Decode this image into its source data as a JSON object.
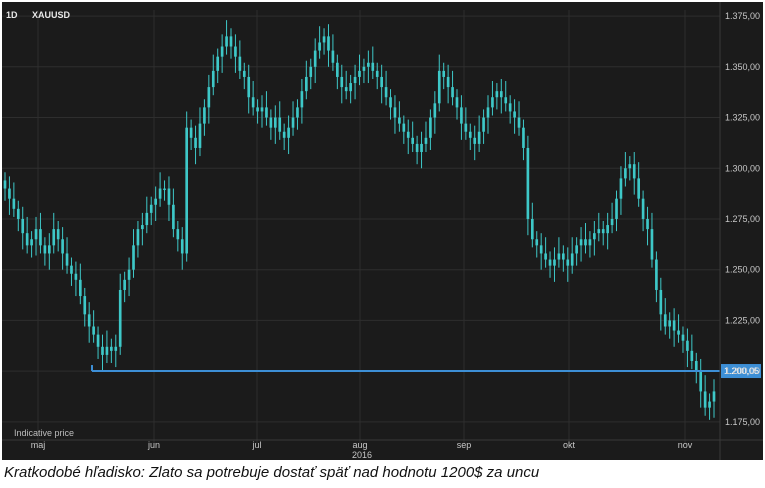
{
  "chart_data": {
    "type": "candlestick",
    "symbol": "XAUUSD",
    "interval": "1D",
    "footnote": "Indicative price",
    "year_label": "2016",
    "months": [
      "maj",
      "jun",
      "jul",
      "aug",
      "sep",
      "okt",
      "nov"
    ],
    "y_ticks": [
      "1.375,00",
      "1.350,00",
      "1.325,00",
      "1.300,00",
      "1.275,00",
      "1.250,00",
      "1.225,00",
      "1.200,00",
      "1.175,00"
    ],
    "ylim": [
      1170,
      1378
    ],
    "level": {
      "value": 1200.05,
      "label": "1.200,05",
      "color": "#3d8fd6"
    },
    "candle_color": "#3ec8c8",
    "background": "#1b1b1b",
    "closes": [
      1290,
      1285,
      1280,
      1275,
      1268,
      1262,
      1265,
      1270,
      1262,
      1258,
      1262,
      1270,
      1265,
      1258,
      1252,
      1248,
      1245,
      1237,
      1228,
      1222,
      1218,
      1212,
      1208,
      1212,
      1210,
      1212,
      1240,
      1245,
      1250,
      1262,
      1270,
      1272,
      1278,
      1282,
      1285,
      1290,
      1290,
      1282,
      1270,
      1265,
      1258,
      1320,
      1315,
      1310,
      1322,
      1330,
      1340,
      1348,
      1355,
      1360,
      1365,
      1360,
      1355,
      1348,
      1345,
      1335,
      1330,
      1328,
      1330,
      1325,
      1320,
      1325,
      1318,
      1315,
      1320,
      1325,
      1330,
      1338,
      1345,
      1350,
      1358,
      1362,
      1365,
      1358,
      1352,
      1345,
      1340,
      1338,
      1342,
      1345,
      1348,
      1350,
      1352,
      1348,
      1345,
      1340,
      1335,
      1330,
      1325,
      1322,
      1318,
      1315,
      1312,
      1308,
      1312,
      1315,
      1325,
      1332,
      1348,
      1345,
      1340,
      1335,
      1330,
      1322,
      1318,
      1315,
      1312,
      1318,
      1325,
      1330,
      1335,
      1338,
      1335,
      1332,
      1328,
      1325,
      1320,
      1310,
      1275,
      1265,
      1262,
      1258,
      1255,
      1252,
      1255,
      1258,
      1255,
      1252,
      1258,
      1262,
      1265,
      1262,
      1265,
      1268,
      1270,
      1268,
      1272,
      1275,
      1285,
      1295,
      1300,
      1302,
      1295,
      1285,
      1275,
      1270,
      1255,
      1240,
      1228,
      1222,
      1225,
      1220,
      1218,
      1215,
      1210,
      1205,
      1200,
      1190,
      1182,
      1185,
      1190
    ]
  }
}
